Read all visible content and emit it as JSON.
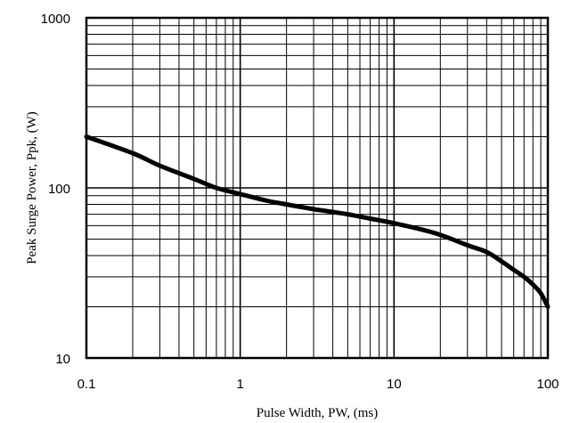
{
  "chart_data": {
    "type": "line",
    "xlabel": "Pulse Width, PW, (ms)",
    "ylabel": "Peak Surge Power, Ppk, (W)",
    "x_scale": "log",
    "y_scale": "log",
    "xlim": [
      0.1,
      100
    ],
    "ylim": [
      10,
      1000
    ],
    "x_ticks": [
      "0.1",
      "1",
      "10",
      "100"
    ],
    "y_ticks": [
      "10",
      "100",
      "1000"
    ],
    "grid": true,
    "series": [
      {
        "x": [
          0.1,
          0.2,
          0.3,
          0.5,
          0.7,
          1,
          1.5,
          2,
          3,
          5,
          7,
          10,
          15,
          20,
          30,
          40,
          50,
          60,
          70,
          80,
          90,
          100
        ],
        "y": [
          200,
          160,
          135,
          113,
          100,
          92,
          84,
          80,
          75,
          70,
          66,
          62,
          57,
          53,
          46,
          42,
          37,
          33,
          30,
          27,
          24,
          20
        ]
      }
    ],
    "line_color": "#000000"
  }
}
